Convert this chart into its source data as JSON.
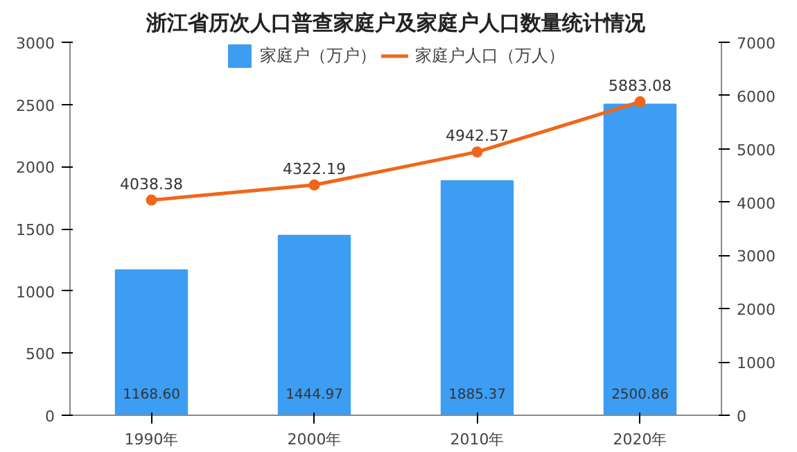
{
  "chart_data": {
    "type": "bar",
    "title": "浙江省历次人口普查家庭户及家庭户人口数量统计情况",
    "categories": [
      "1990年",
      "2000年",
      "2010年",
      "2020年"
    ],
    "series": [
      {
        "name": "家庭户（万户）",
        "color": "#3d9df2",
        "values": [
          1168.6,
          1444.97,
          1885.37,
          2500.86
        ],
        "value_labels": [
          "1168.60",
          "1444.97",
          "1885.37",
          "2500.86"
        ]
      },
      {
        "name": "家庭户人口（万人）",
        "type": "line",
        "axis": "y2",
        "color": "#f0661a",
        "values": [
          4038.38,
          4322.19,
          4942.57,
          5883.08
        ],
        "value_labels": [
          "4038.38",
          "4322.19",
          "4942.57",
          "5883.08"
        ]
      }
    ],
    "ylim": [
      0,
      3000
    ],
    "yticks": [
      0,
      500,
      1000,
      1500,
      2000,
      2500,
      3000
    ],
    "y2lim": [
      0,
      7000
    ],
    "y2ticks": [
      0,
      1000,
      2000,
      3000,
      4000,
      5000,
      6000,
      7000
    ],
    "legend": "top",
    "marker": "circle",
    "grid": false
  }
}
